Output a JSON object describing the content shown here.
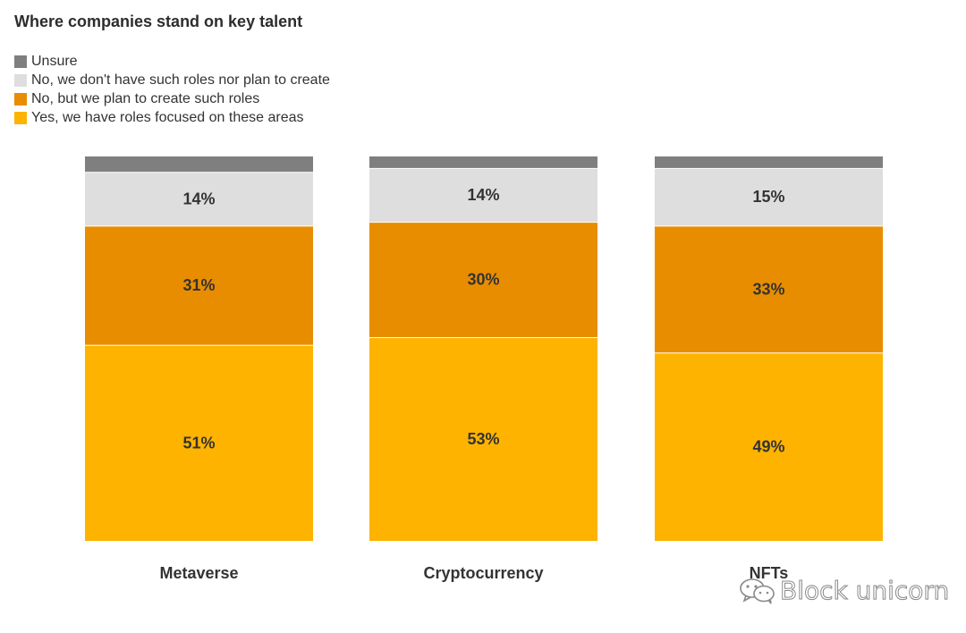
{
  "chart_data": {
    "type": "bar",
    "stacked": true,
    "normalized": true,
    "title": "Where companies stand on key talent",
    "categories": [
      "Metaverse",
      "Cryptocurrency",
      "NFTs"
    ],
    "series": [
      {
        "name": "Yes, we have roles focused on these areas",
        "color": "#fdb300",
        "values": [
          51,
          53,
          49
        ],
        "labels": [
          "51%",
          "53%",
          "49%"
        ]
      },
      {
        "name": "No, but we plan to create such roles",
        "color": "#e88d00",
        "values": [
          31,
          30,
          33
        ],
        "labels": [
          "31%",
          "30%",
          "33%"
        ]
      },
      {
        "name": "No, we don't have such roles nor plan to create",
        "color": "#dedede",
        "values": [
          14,
          14,
          15
        ],
        "labels": [
          "14%",
          "14%",
          "15%"
        ]
      },
      {
        "name": "Unsure",
        "color": "#7f7f7f",
        "values": [
          4,
          3,
          3
        ],
        "labels": [
          "",
          "",
          ""
        ]
      }
    ],
    "legend_order": [
      "Unsure",
      "No, we don't have such roles nor plan to create",
      "No, but we plan to create such roles",
      "Yes, we have roles focused on these areas"
    ],
    "legend_placement": "top-left",
    "ylim": [
      0,
      100
    ],
    "grid": false
  },
  "watermark": {
    "text": "Block unicorn",
    "icon": "wechat-icon"
  }
}
